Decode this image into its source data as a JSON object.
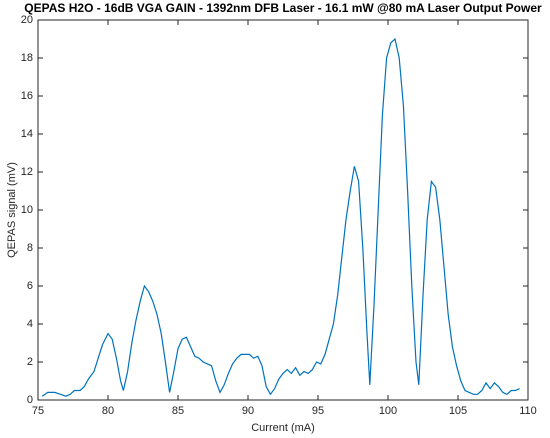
{
  "chart_data": {
    "type": "line",
    "title": "QEPAS H2O - 16dB VGA GAIN - 1392nm DFB Laser - 16.1 mW @80 mA Laser Output Power",
    "x_label": "Current (mA)",
    "y_label": "QEPAS signal (mV)",
    "xlim": [
      75,
      110
    ],
    "xticks": [
      75,
      80,
      85,
      90,
      95,
      100,
      105,
      110
    ],
    "ylim": [
      0,
      20
    ],
    "yticks": [
      0,
      2,
      4,
      6,
      8,
      10,
      12,
      14,
      16,
      18,
      20
    ],
    "grid": false,
    "x": [
      75.3,
      75.7,
      76.2,
      76.6,
      77.0,
      77.3,
      77.6,
      78.0,
      78.3,
      78.6,
      79.0,
      79.3,
      79.6,
      80.0,
      80.3,
      80.6,
      80.9,
      81.1,
      81.4,
      81.7,
      82.0,
      82.3,
      82.6,
      82.9,
      83.2,
      83.5,
      83.8,
      84.1,
      84.4,
      84.7,
      85.0,
      85.3,
      85.6,
      85.9,
      86.2,
      86.5,
      86.8,
      87.1,
      87.4,
      87.7,
      88.0,
      88.3,
      88.6,
      88.9,
      89.2,
      89.5,
      89.8,
      90.1,
      90.4,
      90.7,
      91.0,
      91.3,
      91.6,
      91.9,
      92.2,
      92.5,
      92.8,
      93.1,
      93.4,
      93.7,
      94.0,
      94.3,
      94.6,
      94.9,
      95.2,
      95.5,
      95.8,
      96.1,
      96.4,
      96.7,
      97.0,
      97.3,
      97.6,
      97.9,
      98.2,
      98.5,
      98.7,
      99.0,
      99.3,
      99.6,
      99.9,
      100.2,
      100.5,
      100.8,
      101.1,
      101.4,
      101.7,
      102.0,
      102.2,
      102.5,
      102.8,
      103.1,
      103.4,
      103.7,
      104.0,
      104.3,
      104.6,
      104.9,
      105.2,
      105.5,
      105.8,
      106.1,
      106.4,
      106.7,
      107.0,
      107.3,
      107.6,
      107.9,
      108.2,
      108.5,
      108.8,
      109.1,
      109.4
    ],
    "series": [
      {
        "color": "#0072bd",
        "values": [
          0.2,
          0.4,
          0.4,
          0.3,
          0.2,
          0.3,
          0.5,
          0.5,
          0.7,
          1.1,
          1.5,
          2.2,
          2.9,
          3.5,
          3.2,
          2.2,
          1.0,
          0.5,
          1.5,
          3.0,
          4.2,
          5.2,
          6.0,
          5.7,
          5.2,
          4.5,
          3.5,
          2.0,
          0.4,
          1.5,
          2.7,
          3.2,
          3.3,
          2.8,
          2.3,
          2.2,
          2.0,
          1.9,
          1.8,
          1.0,
          0.4,
          0.8,
          1.4,
          1.9,
          2.2,
          2.4,
          2.4,
          2.4,
          2.2,
          2.3,
          1.8,
          0.7,
          0.3,
          0.6,
          1.1,
          1.4,
          1.6,
          1.4,
          1.7,
          1.3,
          1.5,
          1.4,
          1.6,
          2.0,
          1.9,
          2.4,
          3.2,
          4.0,
          5.5,
          7.5,
          9.5,
          11.0,
          12.3,
          11.5,
          8.0,
          3.5,
          0.8,
          5.0,
          10.0,
          15.0,
          18.0,
          18.8,
          19.0,
          18.0,
          15.5,
          11.0,
          6.0,
          2.0,
          0.8,
          5.5,
          9.5,
          11.5,
          11.2,
          9.5,
          7.0,
          4.5,
          2.8,
          1.8,
          1.0,
          0.5,
          0.4,
          0.3,
          0.3,
          0.5,
          0.9,
          0.6,
          0.9,
          0.7,
          0.4,
          0.3,
          0.5,
          0.5,
          0.6
        ]
      }
    ]
  }
}
